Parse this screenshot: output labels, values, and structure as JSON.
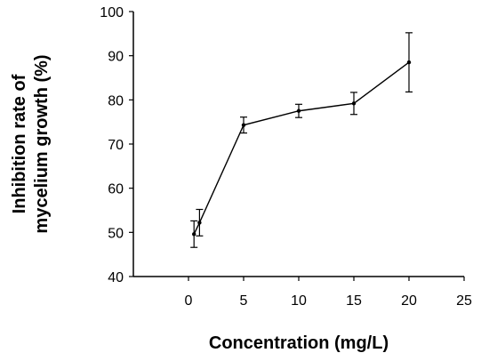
{
  "chart_data": {
    "type": "line",
    "title": "",
    "xlabel": "Concentration (mg/L)",
    "ylabel_lines": [
      "Inhibition rate of",
      "mycelium growth (%)"
    ],
    "xlim": [
      -5,
      25
    ],
    "ylim": [
      40,
      100
    ],
    "x_ticks": [
      0,
      5,
      10,
      15,
      20,
      25
    ],
    "y_ticks": [
      40,
      50,
      60,
      70,
      80,
      90,
      100
    ],
    "grid": false,
    "series": [
      {
        "x": [
          0.5,
          1,
          5,
          10,
          15,
          20
        ],
        "y": [
          49.6,
          52.2,
          74.3,
          77.5,
          79.2,
          88.5
        ],
        "error": [
          3.0,
          3.0,
          1.8,
          1.5,
          2.5,
          6.7
        ]
      }
    ]
  }
}
